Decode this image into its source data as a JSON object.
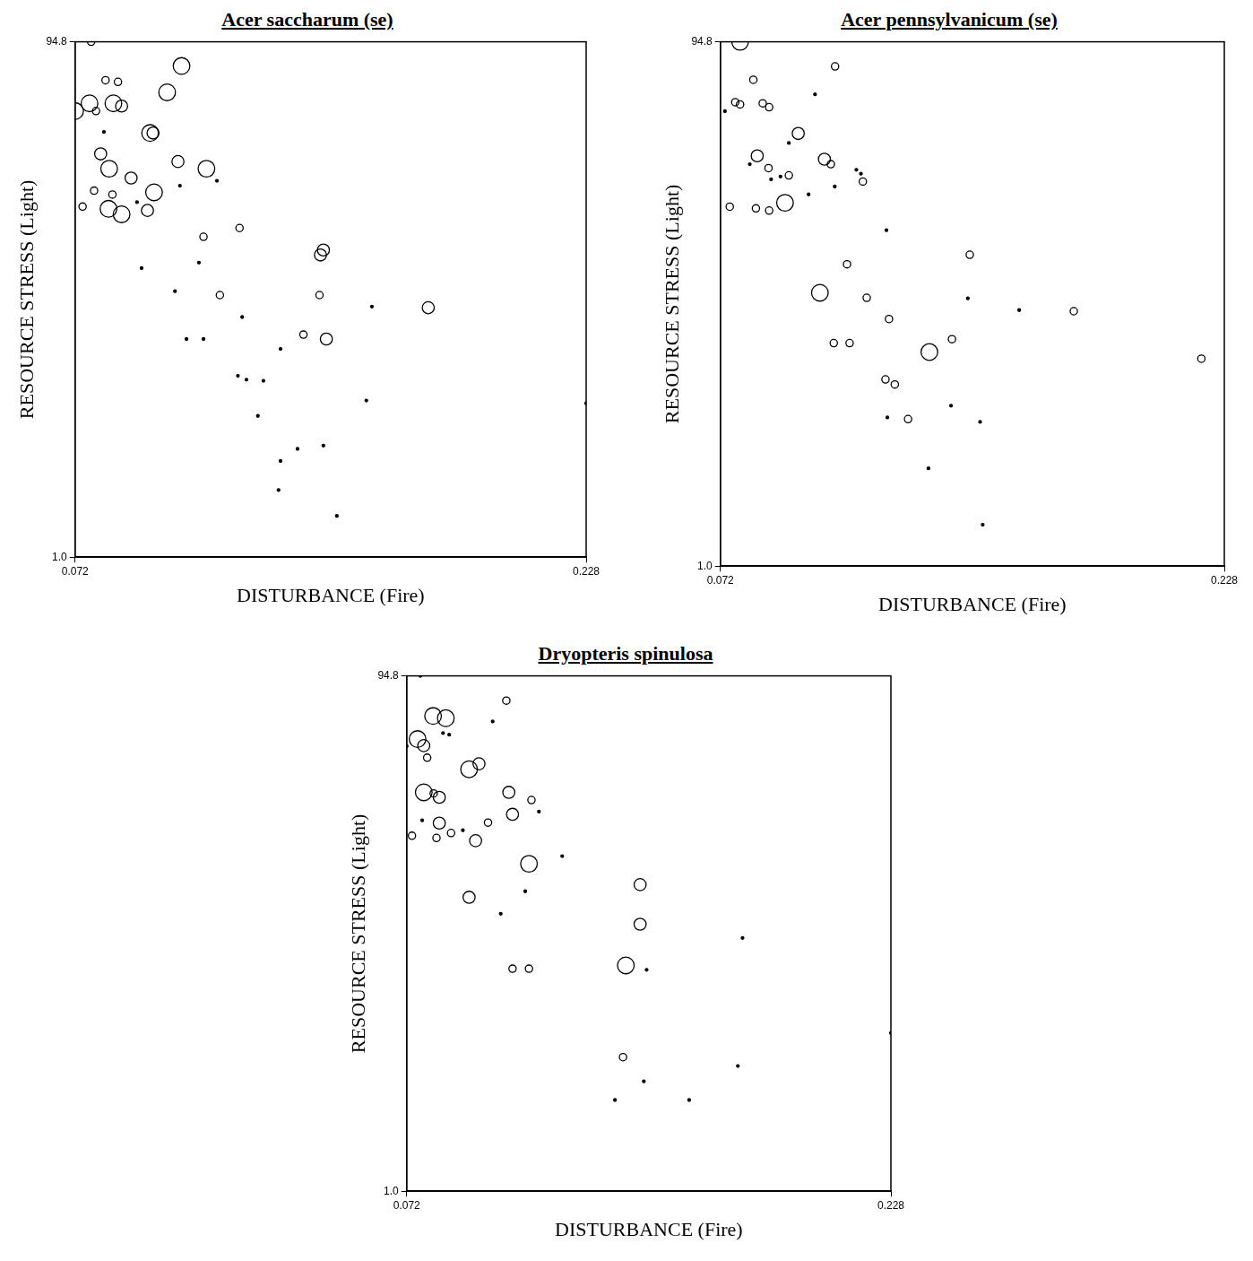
{
  "chart_data": [
    {
      "type": "bubble",
      "title": "Acer saccharum (se)",
      "x_label": "DISTURBANCE (Fire)",
      "y_label": "RESOURCE STRESS (Light)",
      "color": "#000000",
      "marker": "circle",
      "grid": false,
      "xlim": [
        0.072,
        0.228
      ],
      "xticks": [
        0.072,
        0.228
      ],
      "ylim": [
        1,
        94.8
      ],
      "yticks": [
        {
          "value": 1,
          "label": "1.0"
        },
        94.8
      ],
      "x": [
        0.0769,
        0.072,
        0.0764,
        0.0784,
        0.0813,
        0.0851,
        0.0837,
        0.0862,
        0.0808,
        0.1045,
        0.1001,
        0.0949,
        0.0958,
        0.0798,
        0.0824,
        0.0891,
        0.0778,
        0.0834,
        0.0961,
        0.1034,
        0.1121,
        0.0822,
        0.0862,
        0.0941,
        0.0743,
        0.0909,
        0.104,
        0.1153,
        0.1112,
        0.1222,
        0.0923,
        0.1098,
        0.1162,
        0.1025,
        0.123,
        0.106,
        0.1112,
        0.1217,
        0.1243,
        0.1295,
        0.1278,
        0.1347,
        0.1417,
        0.1478,
        0.1469,
        0.1466,
        0.1487,
        0.1626,
        0.1798,
        0.1609,
        0.1347,
        0.1399,
        0.1478,
        0.1341,
        0.1519,
        0.228
      ],
      "values": [
        94.8,
        82.2,
        83.6,
        82.2,
        87.8,
        87.5,
        83.6,
        83.1,
        78.4,
        90.4,
        85.6,
        78.2,
        78.2,
        74.4,
        71.7,
        70.0,
        67.7,
        67.0,
        67.4,
        73.0,
        71.7,
        64.4,
        63.4,
        64.1,
        64.8,
        65.6,
        68.6,
        69.5,
        59.3,
        60.9,
        53.6,
        54.6,
        48.7,
        49.4,
        44.7,
        40.7,
        40.7,
        34.0,
        33.3,
        33.1,
        26.7,
        38.9,
        41.5,
        56.9,
        56.0,
        48.7,
        40.7,
        46.6,
        46.4,
        29.5,
        18.5,
        20.7,
        21.3,
        13.2,
        8.5,
        29.0
      ],
      "sizes": [
        2,
        4,
        4,
        2,
        2,
        2,
        4,
        3,
        1,
        4,
        4,
        4,
        3,
        3,
        4,
        3,
        2,
        2,
        4,
        3,
        4,
        4,
        4,
        3,
        2,
        1,
        1,
        1,
        2,
        2,
        1,
        1,
        2,
        1,
        1,
        1,
        1,
        1,
        1,
        1,
        1,
        1,
        2,
        3,
        3,
        2,
        3,
        1,
        3,
        1,
        1,
        1,
        1,
        1,
        1,
        1
      ]
    },
    {
      "type": "bubble",
      "title": "Acer pennsylvanicum (se)",
      "x_label": "DISTURBANCE (Fire)",
      "y_label": "RESOURCE STRESS (Light)",
      "color": "#000000",
      "marker": "circle",
      "grid": false,
      "xlim": [
        0.072,
        0.228
      ],
      "xticks": [
        0.072,
        0.228
      ],
      "ylim": [
        1,
        94.8
      ],
      "yticks": [
        {
          "value": 1,
          "label": "1.0"
        },
        94.8
      ],
      "x": [
        0.0781,
        0.1075,
        0.0822,
        0.0766,
        0.0781,
        0.0851,
        0.0871,
        0.0734,
        0.1013,
        0.0961,
        0.0932,
        0.0834,
        0.0811,
        0.0869,
        0.1042,
        0.1062,
        0.1141,
        0.1155,
        0.1161,
        0.1074,
        0.0932,
        0.0906,
        0.0877,
        0.0749,
        0.092,
        0.083,
        0.0871,
        0.0993,
        0.1234,
        0.1112,
        0.1028,
        0.1173,
        0.1492,
        0.1486,
        0.1242,
        0.1645,
        0.1814,
        0.1071,
        0.112,
        0.1367,
        0.1437,
        0.1231,
        0.126,
        0.2209,
        0.1434,
        0.1237,
        0.1301,
        0.1524,
        0.1364,
        0.1532
      ],
      "values": [
        94.8,
        90.4,
        88.0,
        84.0,
        83.6,
        83.8,
        83.1,
        82.4,
        85.4,
        78.4,
        76.7,
        74.4,
        72.9,
        72.2,
        73.8,
        72.9,
        71.9,
        71.2,
        69.8,
        68.9,
        70.9,
        70.7,
        70.2,
        65.3,
        66.0,
        65.0,
        64.6,
        67.5,
        61.1,
        55.0,
        49.9,
        49.0,
        56.7,
        48.9,
        45.2,
        46.8,
        46.6,
        40.9,
        40.9,
        39.3,
        41.6,
        34.4,
        33.5,
        38.1,
        29.7,
        27.6,
        27.3,
        26.8,
        18.5,
        8.4
      ],
      "sizes": [
        4,
        2,
        2,
        2,
        2,
        2,
        2,
        1,
        1,
        3,
        1,
        3,
        1,
        2,
        3,
        2,
        1,
        1,
        2,
        1,
        2,
        1,
        1,
        2,
        4,
        2,
        2,
        1,
        1,
        2,
        4,
        2,
        2,
        1,
        2,
        1,
        2,
        2,
        2,
        4,
        2,
        2,
        2,
        2,
        1,
        1,
        2,
        1,
        1,
        1
      ]
    },
    {
      "type": "bubble",
      "title": "Dryopteris spinulosa",
      "x_label": "DISTURBANCE (Fire)",
      "y_label": "RESOURCE STRESS (Light)",
      "color": "#000000",
      "marker": "circle",
      "grid": false,
      "xlim": [
        0.072,
        0.228
      ],
      "xticks": [
        0.072,
        0.228
      ],
      "ylim": [
        1,
        94.8
      ],
      "yticks": [
        {
          "value": 1,
          "label": "1.0"
        },
        94.8
      ],
      "x": [
        0.0764,
        0.1041,
        0.0805,
        0.0846,
        0.0755,
        0.072,
        0.0775,
        0.0837,
        0.0857,
        0.0786,
        0.0997,
        0.0921,
        0.0953,
        0.0775,
        0.0807,
        0.0825,
        0.1049,
        0.1122,
        0.1146,
        0.1061,
        0.0825,
        0.0737,
        0.0816,
        0.0863,
        0.0901,
        0.0942,
        0.0982,
        0.077,
        0.1114,
        0.1221,
        0.0921,
        0.1102,
        0.1472,
        0.1023,
        0.1472,
        0.1061,
        0.1114,
        0.1426,
        0.1493,
        0.1802,
        0.228,
        0.1417,
        0.1787,
        0.1484,
        0.1391,
        0.163
      ],
      "values": [
        94.8,
        90.3,
        87.5,
        87.1,
        83.3,
        82.0,
        82.1,
        84.4,
        84.1,
        79.9,
        86.5,
        77.8,
        78.8,
        73.6,
        73.4,
        72.7,
        73.6,
        72.2,
        70.1,
        69.6,
        68.0,
        65.7,
        65.3,
        66.2,
        66.7,
        64.8,
        68.1,
        68.5,
        60.6,
        62.0,
        54.5,
        55.6,
        56.8,
        51.5,
        49.6,
        41.5,
        41.5,
        42.1,
        41.3,
        47.1,
        29.8,
        25.4,
        23.8,
        21.0,
        17.6,
        17.6
      ],
      "sizes": [
        1,
        2,
        4,
        4,
        4,
        1,
        3,
        1,
        1,
        2,
        1,
        4,
        3,
        4,
        2,
        3,
        3,
        2,
        1,
        3,
        3,
        2,
        2,
        2,
        1,
        3,
        2,
        1,
        4,
        1,
        3,
        1,
        3,
        1,
        3,
        2,
        2,
        4,
        1,
        1,
        1,
        2,
        1,
        1,
        1,
        1
      ]
    }
  ]
}
